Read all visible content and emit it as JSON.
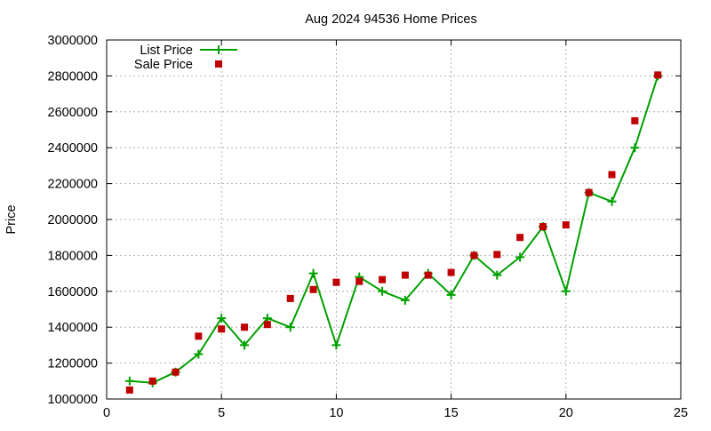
{
  "chart_data": {
    "type": "line",
    "title": "Aug 2024 94536 Home Prices",
    "xlabel": "",
    "ylabel": "Price",
    "xlim": [
      0,
      25
    ],
    "ylim": [
      1000000,
      3000000
    ],
    "x_ticks": [
      0,
      5,
      10,
      15,
      20,
      25
    ],
    "y_ticks": [
      1000000,
      1200000,
      1400000,
      1600000,
      1800000,
      2000000,
      2200000,
      2400000,
      2600000,
      2800000,
      3000000
    ],
    "grid": true,
    "legend_position": "top-left",
    "series": [
      {
        "name": "List Price",
        "style": "line-points",
        "color": "#00a000",
        "x": [
          1,
          2,
          3,
          4,
          5,
          6,
          7,
          8,
          9,
          10,
          11,
          12,
          13,
          14,
          15,
          16,
          17,
          18,
          19,
          20,
          21,
          22,
          23,
          24
        ],
        "values": [
          1100000,
          1090000,
          1150000,
          1250000,
          1450000,
          1300000,
          1450000,
          1400000,
          1700000,
          1300000,
          1680000,
          1600000,
          1550000,
          1700000,
          1580000,
          1800000,
          1690000,
          1790000,
          1960000,
          1600000,
          2150000,
          2100000,
          2400000,
          2800000
        ]
      },
      {
        "name": "Sale Price",
        "style": "points",
        "color": "#c00000",
        "x": [
          1,
          2,
          3,
          4,
          5,
          6,
          7,
          8,
          9,
          10,
          11,
          12,
          13,
          14,
          15,
          16,
          17,
          18,
          19,
          20,
          21,
          22,
          23,
          24
        ],
        "values": [
          1050000,
          1100000,
          1150000,
          1350000,
          1390000,
          1400000,
          1415000,
          1560000,
          1610000,
          1650000,
          1655000,
          1665000,
          1690000,
          1690000,
          1705000,
          1800000,
          1805000,
          1900000,
          1960000,
          1970000,
          2150000,
          2250000,
          2550000,
          2805000
        ]
      }
    ]
  }
}
